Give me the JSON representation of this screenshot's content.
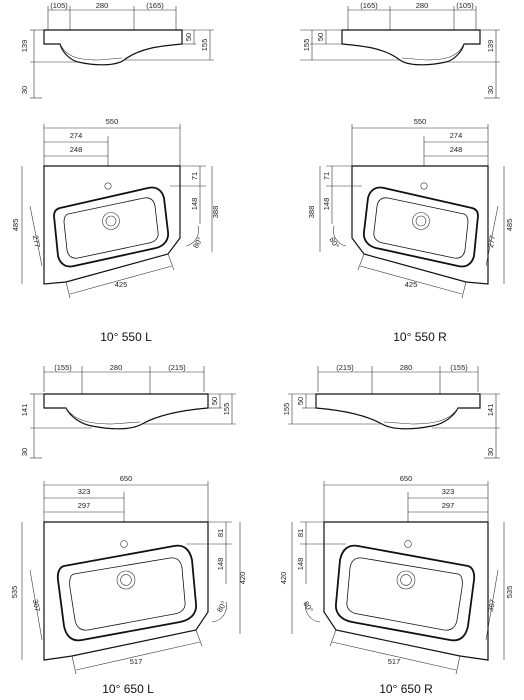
{
  "diagrams": [
    {
      "side": {
        "top": [
          "(105)",
          "280",
          "(165)"
        ],
        "right": [
          "50",
          "155",
          "139"
        ],
        "bottom": "30"
      },
      "plan": {
        "width": "550",
        "a": "274",
        "b": "248",
        "depth": "485",
        "d71": "71",
        "d148": "148",
        "d388": "388",
        "d277": "277",
        "bottom": "425",
        "angle": "80°"
      },
      "caption": "10° 550 L"
    },
    {
      "side": {
        "top": [
          "(165)",
          "280",
          "(105)"
        ],
        "right": [
          "50",
          "155",
          "139"
        ],
        "bottom": "30"
      },
      "plan": {
        "width": "550",
        "a": "274",
        "b": "248",
        "depth": "485",
        "d71": "71",
        "d148": "148",
        "d388": "388",
        "d277": "277",
        "bottom": "425",
        "angle": "80°"
      },
      "caption": "10° 550 R"
    },
    {
      "side": {
        "top": [
          "(155)",
          "280",
          "(215)"
        ],
        "right": [
          "50",
          "155",
          "141"
        ],
        "bottom": "30"
      },
      "plan": {
        "width": "650",
        "a": "323",
        "b": "297",
        "depth": "535",
        "d71": "81",
        "d148": "148",
        "d388": "420",
        "d277": "307",
        "bottom": "517",
        "angle": "80°"
      },
      "caption": "10° 650 L"
    },
    {
      "side": {
        "top": [
          "(215)",
          "280",
          "(155)"
        ],
        "right": [
          "50",
          "155",
          "141"
        ],
        "bottom": "30"
      },
      "plan": {
        "width": "650",
        "a": "323",
        "b": "297",
        "depth": "535",
        "d71": "81",
        "d148": "148",
        "d388": "420",
        "d277": "307",
        "bottom": "517",
        "angle": "80°"
      },
      "caption": "10° 650 R"
    }
  ]
}
